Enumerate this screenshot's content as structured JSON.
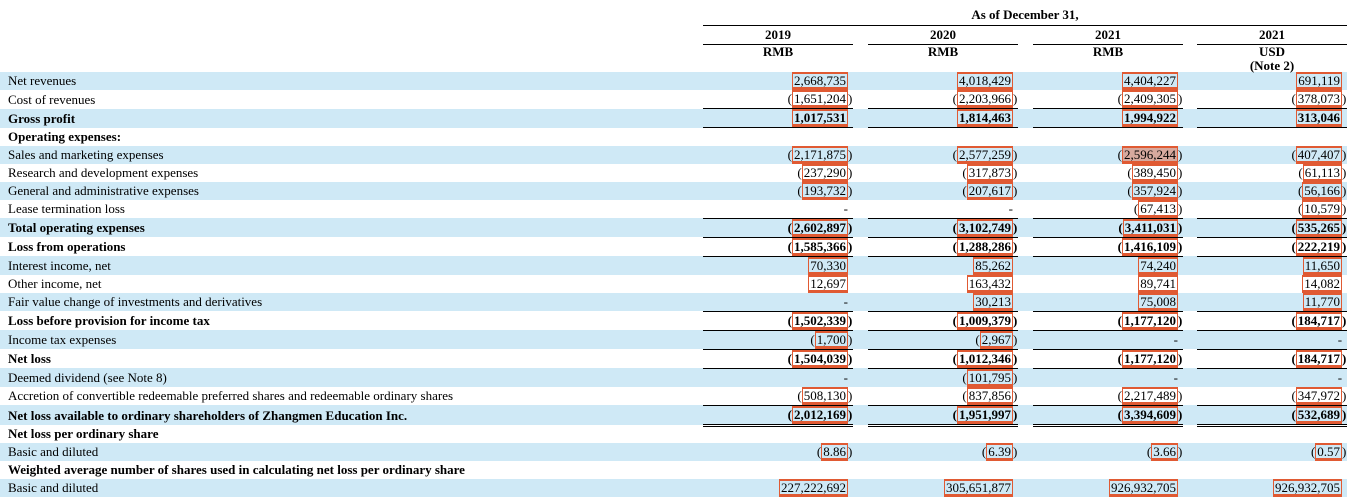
{
  "colors": {
    "row_alt": "#cfe9f6",
    "annotation_box": "#e05a33",
    "annotation_highlight_fill": "rgba(224,90,51,0.45)"
  },
  "table": {
    "title": "As of December 31,",
    "columns": [
      {
        "year": "2019",
        "currency": "RMB",
        "note": ""
      },
      {
        "year": "2020",
        "currency": "RMB",
        "note": ""
      },
      {
        "year": "2021",
        "currency": "RMB",
        "note": ""
      },
      {
        "year": "2021",
        "currency": "USD",
        "note": "(Note 2)"
      }
    ],
    "rows": [
      {
        "label": "Net revenues",
        "bold": false,
        "values": [
          "2,668,735",
          "4,018,429",
          "4,404,227",
          "691,119"
        ]
      },
      {
        "label": "Cost of revenues",
        "bold": false,
        "border_bottom": true,
        "values": [
          "(1,651,204)",
          "(2,203,966)",
          "(2,409,305)",
          "(378,073)"
        ]
      },
      {
        "label": "Gross profit",
        "bold": true,
        "border_bottom": true,
        "values": [
          "1,017,531",
          "1,814,463",
          "1,994,922",
          "313,046"
        ]
      },
      {
        "label": "Operating expenses:",
        "bold": true,
        "values": [
          "",
          "",
          "",
          ""
        ]
      },
      {
        "label": "Sales and marketing expenses",
        "bold": false,
        "highlight": [
          2
        ],
        "values": [
          "(2,171,875)",
          "(2,577,259)",
          "(2,596,244)",
          "(407,407)"
        ]
      },
      {
        "label": "Research and development expenses",
        "bold": false,
        "values": [
          "(237,290)",
          "(317,873)",
          "(389,450)",
          "(61,113)"
        ]
      },
      {
        "label": "General and administrative expenses",
        "bold": false,
        "values": [
          "(193,732)",
          "(207,617)",
          "(357,924)",
          "(56,166)"
        ]
      },
      {
        "label": "Lease termination loss",
        "bold": false,
        "border_bottom": true,
        "values": [
          "-",
          "-",
          "(67,413)",
          "(10,579)"
        ]
      },
      {
        "label": "Total operating expenses",
        "bold": true,
        "border_bottom": true,
        "values": [
          "(2,602,897)",
          "(3,102,749)",
          "(3,411,031)",
          "(535,265)"
        ]
      },
      {
        "label": "Loss from operations",
        "bold": true,
        "border_bottom": true,
        "values": [
          "(1,585,366)",
          "(1,288,286)",
          "(1,416,109)",
          "(222,219)"
        ]
      },
      {
        "label": "Interest income, net",
        "bold": false,
        "values": [
          "70,330",
          "85,262",
          "74,240",
          "11,650"
        ]
      },
      {
        "label": "Other income, net",
        "bold": false,
        "values": [
          "12,697",
          "163,432",
          "89,741",
          "14,082"
        ]
      },
      {
        "label": "Fair value change of investments and derivatives",
        "bold": false,
        "border_bottom": true,
        "values": [
          "-",
          "30,213",
          "75,008",
          "11,770"
        ]
      },
      {
        "label": "Loss before provision for income tax",
        "bold": true,
        "border_bottom": true,
        "values": [
          "(1,502,339)",
          "(1,009,379)",
          "(1,177,120)",
          "(184,717)"
        ]
      },
      {
        "label": "Income tax expenses",
        "bold": false,
        "border_bottom": true,
        "values": [
          "(1,700)",
          "(2,967)",
          "-",
          "-"
        ]
      },
      {
        "label": "Net loss",
        "bold": true,
        "border_bottom": true,
        "values": [
          "(1,504,039)",
          "(1,012,346)",
          "(1,177,120)",
          "(184,717)"
        ]
      },
      {
        "label": "Deemed dividend (see Note 8)",
        "bold": false,
        "values": [
          "-",
          "(101,795)",
          "-",
          "-"
        ]
      },
      {
        "label": "Accretion of convertible redeemable preferred shares and redeemable ordinary shares",
        "bold": false,
        "border_bottom": true,
        "values": [
          "(508,130)",
          "(837,856)",
          "(2,217,489)",
          "(347,972)"
        ]
      },
      {
        "label": "Net loss available to ordinary shareholders of Zhangmen Education Inc.",
        "bold": true,
        "double_bottom": true,
        "values": [
          "(2,012,169)",
          "(1,951,997)",
          "(3,394,609)",
          "(532,689)"
        ]
      },
      {
        "label": "Net loss per ordinary share",
        "bold": true,
        "values": [
          "",
          "",
          "",
          ""
        ]
      },
      {
        "label": "Basic and diluted",
        "bold": false,
        "values": [
          "(8.86)",
          "(6.39)",
          "(3.66)",
          "(0.57)"
        ]
      },
      {
        "label": "Weighted average number of shares used in calculating net loss per ordinary share",
        "bold": true,
        "values": [
          "",
          "",
          "",
          ""
        ]
      },
      {
        "label": "Basic and diluted",
        "bold": false,
        "values": [
          "227,222,692",
          "305,651,877",
          "926,932,705",
          "926,932,705"
        ]
      }
    ]
  }
}
